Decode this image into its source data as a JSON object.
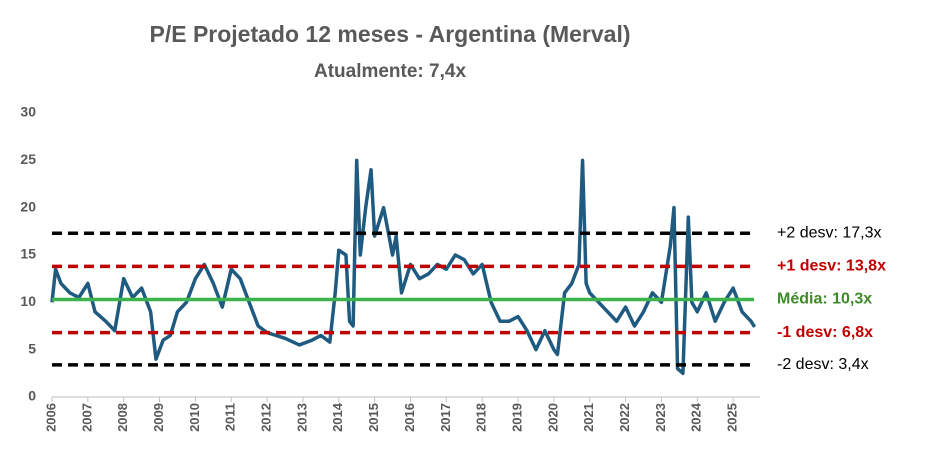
{
  "chart_data": {
    "type": "line",
    "title": "P/E Projetado 12 meses - Argentina (Merval)",
    "subtitle": "Atualmente: 7,4x",
    "x": [
      2006.0,
      2006.1,
      2006.25,
      2006.5,
      2006.75,
      2007.0,
      2007.2,
      2007.5,
      2007.75,
      2008.0,
      2008.25,
      2008.5,
      2008.75,
      2008.9,
      2009.1,
      2009.3,
      2009.5,
      2009.75,
      2010.0,
      2010.25,
      2010.5,
      2010.75,
      2011.0,
      2011.25,
      2011.5,
      2011.75,
      2012.0,
      2012.5,
      2012.9,
      2013.25,
      2013.5,
      2013.75,
      2013.9,
      2014.0,
      2014.2,
      2014.3,
      2014.4,
      2014.5,
      2014.6,
      2014.75,
      2014.9,
      2015.0,
      2015.25,
      2015.5,
      2015.6,
      2015.75,
      2016.0,
      2016.25,
      2016.5,
      2016.75,
      2017.0,
      2017.25,
      2017.5,
      2017.75,
      2018.0,
      2018.25,
      2018.5,
      2018.75,
      2019.0,
      2019.25,
      2019.5,
      2019.75,
      2020.0,
      2020.1,
      2020.3,
      2020.5,
      2020.7,
      2020.8,
      2020.9,
      2021.0,
      2021.25,
      2021.5,
      2021.75,
      2022.0,
      2022.25,
      2022.5,
      2022.75,
      2023.0,
      2023.25,
      2023.35,
      2023.45,
      2023.6,
      2023.75,
      2023.85,
      2024.0,
      2024.25,
      2024.5,
      2024.75,
      2025.0,
      2025.25,
      2025.5,
      2025.6
    ],
    "series": [
      {
        "color": "#1f5a80",
        "values": [
          10,
          13.5,
          12,
          11,
          10.5,
          12,
          9,
          8,
          7,
          12.5,
          10.5,
          11.5,
          9,
          4,
          6,
          6.5,
          9,
          10,
          12.5,
          14,
          12,
          9.5,
          13.5,
          12.5,
          10,
          7.5,
          6.8,
          6.2,
          5.5,
          6,
          6.5,
          5.8,
          11,
          15.5,
          15,
          8,
          7.5,
          25,
          15,
          20,
          24,
          17,
          20,
          15,
          17,
          11,
          14,
          12.5,
          13,
          14,
          13.5,
          15,
          14.5,
          13,
          14,
          10,
          8,
          8,
          8.5,
          7,
          5,
          7,
          5,
          4.5,
          11,
          12,
          14,
          25,
          12,
          11,
          10,
          9,
          8,
          9.5,
          7.5,
          9,
          11,
          10,
          16,
          20,
          3,
          2.5,
          19,
          10,
          9,
          11,
          8,
          10,
          11.5,
          9,
          8,
          7.4
        ]
      }
    ],
    "reference_lines": [
      {
        "value": 17.3,
        "label": "+2 desv: 17,3x",
        "color": "#000000"
      },
      {
        "value": 13.8,
        "label": "+1 desv: 13,8x",
        "color": "#c00000"
      },
      {
        "value": 10.3,
        "label": "Média: 10,3x",
        "color": "#3cb44b"
      },
      {
        "value": 6.8,
        "label": "-1 desv: 6,8x",
        "color": "#c00000"
      },
      {
        "value": 3.4,
        "label": "-2 desv: 3,4x",
        "color": "#000000"
      }
    ],
    "xlim": [
      2006,
      2025.75
    ],
    "xticks": [
      2006,
      2007,
      2008,
      2009,
      2010,
      2011,
      2012,
      2013,
      2014,
      2015,
      2016,
      2017,
      2018,
      2019,
      2020,
      2021,
      2022,
      2023,
      2024,
      2025
    ],
    "ylim": [
      0,
      30
    ],
    "yticks": [
      0,
      5,
      10,
      15,
      20,
      25,
      30
    ]
  }
}
